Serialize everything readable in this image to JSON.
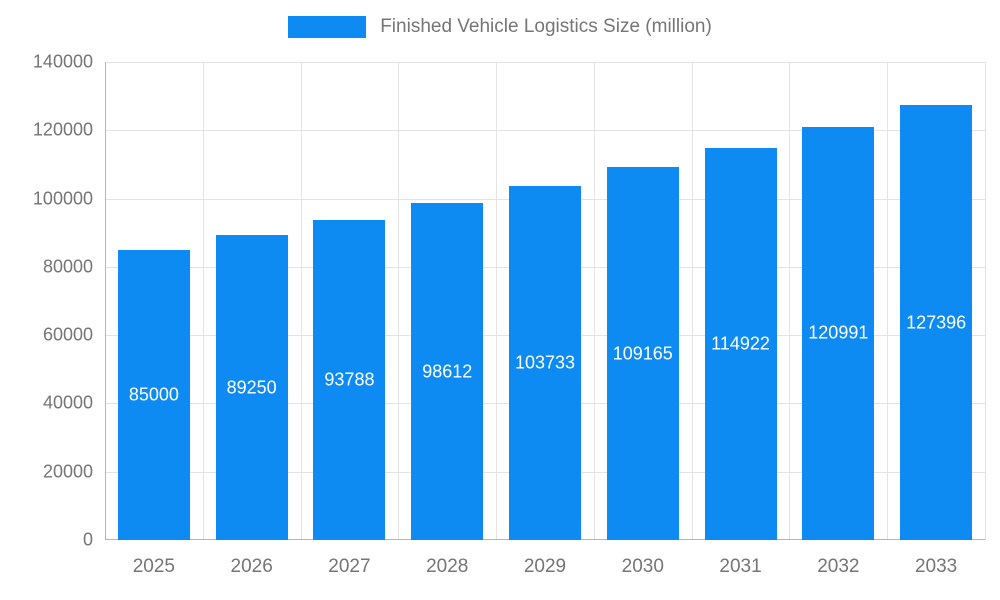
{
  "chart_data": {
    "type": "bar",
    "title": "Finished Vehicle Logistics Size (million)",
    "categories": [
      "2025",
      "2026",
      "2027",
      "2028",
      "2029",
      "2030",
      "2031",
      "2032",
      "2033"
    ],
    "values": [
      85000,
      89250,
      93788,
      98612,
      103733,
      109165,
      114922,
      120991,
      127396
    ],
    "xlabel": "",
    "ylabel": "",
    "ylim": [
      0,
      140000
    ],
    "ytick_step": 20000,
    "ytick_labels": [
      "0",
      "20000",
      "40000",
      "60000",
      "80000",
      "100000",
      "120000",
      "140000"
    ],
    "grid": true,
    "legend_position": "top",
    "colors": {
      "bar": "#0d8bf2",
      "value_label_text": "#ffffff",
      "axis_text": "#757575",
      "gridline": "#e3e3e3",
      "axis_line": "#b6b6b6",
      "background": "#ffffff"
    }
  }
}
